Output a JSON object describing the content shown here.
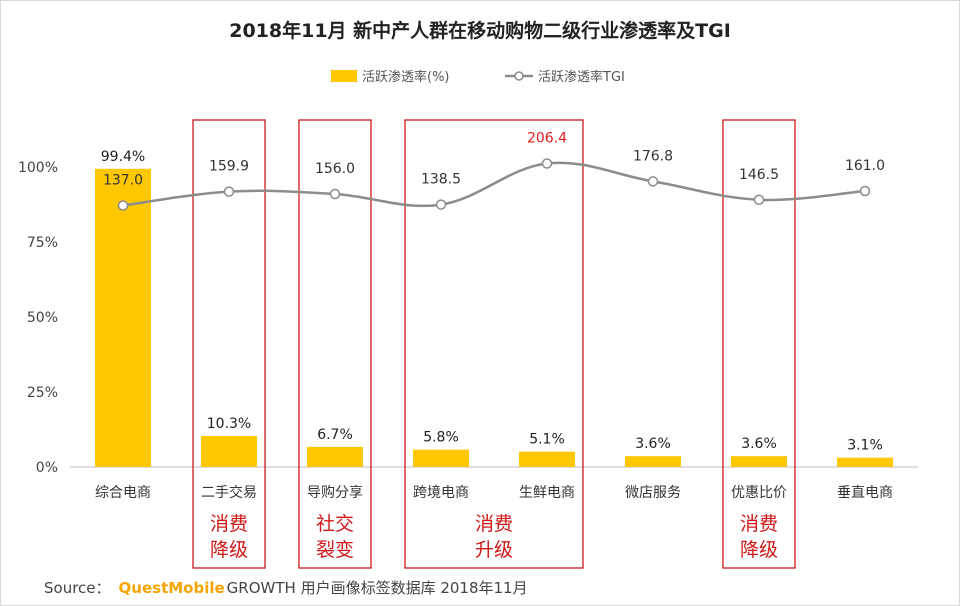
{
  "chart_data": {
    "type": "bar+line",
    "title": "2018年11月 新中产人群在移动购物二级行业渗透率及TGI",
    "categories": [
      "综合电商",
      "二手交易",
      "导购分享",
      "跨境电商",
      "生鲜电商",
      "微店服务",
      "优惠比价",
      "垂直电商"
    ],
    "series": [
      {
        "name": "活跃渗透率(%)",
        "type": "bar",
        "values": [
          99.4,
          10.3,
          6.7,
          5.8,
          5.1,
          3.6,
          3.6,
          3.1
        ],
        "labels": [
          "99.4%",
          "10.3%",
          "6.7%",
          "5.8%",
          "5.1%",
          "3.6%",
          "3.6%",
          "3.1%"
        ]
      },
      {
        "name": "活跃渗透率TGI",
        "type": "line",
        "values": [
          137.0,
          159.9,
          156.0,
          138.5,
          206.4,
          176.8,
          146.5,
          161.0
        ],
        "labels": [
          "137.0",
          "159.9",
          "156.0",
          "138.5",
          "206.4",
          "176.8",
          "146.5",
          "161.0"
        ],
        "highlight_index": 4,
        "highlight_color": "#e02020"
      }
    ],
    "yticks": [
      "0%",
      "25%",
      "50%",
      "75%",
      "100%"
    ],
    "ylim": [
      0,
      120
    ],
    "legend_position": "top-center",
    "annotations": [
      {
        "categories": [
          1,
          1
        ],
        "text": [
          "消费",
          "降级"
        ]
      },
      {
        "categories": [
          2,
          2
        ],
        "text": [
          "社交",
          "裂变"
        ]
      },
      {
        "categories": [
          3,
          4
        ],
        "text": [
          "消费",
          "升级"
        ]
      },
      {
        "categories": [
          6,
          6
        ],
        "text": [
          "消费",
          "降级"
        ]
      }
    ],
    "bar_color": "#ffc800",
    "line_color": "#8c8c8c",
    "box_color": "#d01818"
  },
  "source": {
    "prefix": "Source：",
    "brand": "QuestMobile",
    "rest": "GROWTH 用户画像标签数据库 2018年11月"
  }
}
